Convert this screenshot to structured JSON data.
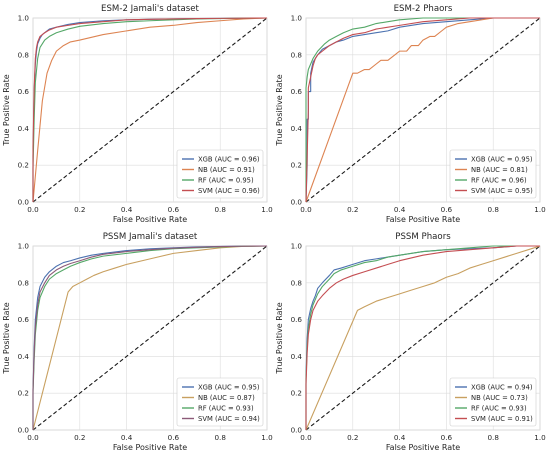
{
  "chart_data": [
    {
      "type": "line",
      "title": "ESM-2 Jamali's dataset",
      "xlabel": "False Positive Rate",
      "ylabel": "True Positive Rate",
      "xlim": [
        0,
        1
      ],
      "ylim": [
        0,
        1
      ],
      "ticks": [
        0.0,
        0.2,
        0.4,
        0.6,
        0.8,
        1.0
      ],
      "tick_labels": [
        "0.0",
        "0.2",
        "0.4",
        "0.6",
        "0.8",
        "1.0"
      ],
      "grid": true,
      "legend": "bottom-right",
      "diagonal": true,
      "series": [
        {
          "name": "XGB (AUC = 0.96)",
          "color": "#4c72b0",
          "x": [
            0,
            0,
            0.005,
            0.01,
            0.015,
            0.02,
            0.03,
            0.04,
            0.05,
            0.07,
            0.1,
            0.15,
            0.2,
            0.3,
            0.4,
            0.5,
            0.6,
            0.7,
            0.8,
            0.9,
            1.0
          ],
          "y": [
            0,
            0.25,
            0.6,
            0.75,
            0.82,
            0.86,
            0.89,
            0.91,
            0.92,
            0.94,
            0.95,
            0.965,
            0.975,
            0.985,
            0.99,
            0.993,
            0.995,
            0.997,
            0.998,
            0.999,
            1.0
          ]
        },
        {
          "name": "NB (AUC = 0.91)",
          "color": "#dd8452",
          "x": [
            0,
            0.02,
            0.04,
            0.06,
            0.08,
            0.1,
            0.13,
            0.16,
            0.2,
            0.3,
            0.4,
            0.5,
            0.6,
            0.7,
            0.8,
            0.9,
            1.0
          ],
          "y": [
            0,
            0.28,
            0.55,
            0.7,
            0.77,
            0.82,
            0.85,
            0.87,
            0.88,
            0.91,
            0.93,
            0.95,
            0.96,
            0.975,
            0.985,
            0.995,
            1.0
          ]
        },
        {
          "name": "RF (AUC = 0.95)",
          "color": "#55a868",
          "x": [
            0,
            0,
            0.005,
            0.01,
            0.02,
            0.03,
            0.05,
            0.07,
            0.1,
            0.15,
            0.2,
            0.3,
            0.4,
            0.5,
            0.6,
            0.7,
            0.8,
            0.9,
            1.0
          ],
          "y": [
            0,
            0.18,
            0.45,
            0.65,
            0.78,
            0.84,
            0.88,
            0.9,
            0.92,
            0.94,
            0.955,
            0.97,
            0.98,
            0.985,
            0.99,
            0.995,
            0.997,
            0.999,
            1.0
          ]
        },
        {
          "name": "SVM (AUC = 0.96)",
          "color": "#c44e52",
          "x": [
            0,
            0,
            0.005,
            0.01,
            0.015,
            0.02,
            0.03,
            0.05,
            0.07,
            0.1,
            0.15,
            0.2,
            0.3,
            0.4,
            0.5,
            0.6,
            0.7,
            0.8,
            0.9,
            1.0
          ],
          "y": [
            0,
            0.3,
            0.62,
            0.78,
            0.84,
            0.87,
            0.9,
            0.92,
            0.935,
            0.95,
            0.96,
            0.97,
            0.98,
            0.99,
            0.993,
            0.995,
            0.997,
            0.998,
            0.999,
            1.0
          ]
        }
      ]
    },
    {
      "type": "line",
      "title": "ESM-2 Phaors",
      "xlabel": "False Positive Rate",
      "ylabel": "True Positive Rate",
      "xlim": [
        0,
        1
      ],
      "ylim": [
        0,
        1
      ],
      "ticks": [
        0.0,
        0.2,
        0.4,
        0.6,
        0.8,
        1.0
      ],
      "tick_labels": [
        "0.0",
        "0.2",
        "0.4",
        "0.6",
        "0.8",
        "1.0"
      ],
      "grid": true,
      "legend": "bottom-right",
      "diagonal": true,
      "series": [
        {
          "name": "XGB (AUC = 0.95)",
          "color": "#4c72b0",
          "x": [
            0,
            0.005,
            0.005,
            0.01,
            0.01,
            0.02,
            0.02,
            0.03,
            0.05,
            0.07,
            0.1,
            0.13,
            0.16,
            0.2,
            0.25,
            0.3,
            0.35,
            0.4,
            0.5,
            0.6,
            0.7,
            0.8,
            1.0
          ],
          "y": [
            0,
            0.2,
            0.45,
            0.45,
            0.6,
            0.6,
            0.7,
            0.76,
            0.8,
            0.83,
            0.85,
            0.87,
            0.88,
            0.9,
            0.91,
            0.92,
            0.93,
            0.95,
            0.97,
            0.98,
            0.99,
            1.0,
            1.0
          ]
        },
        {
          "name": "NB (AUC = 0.81)",
          "color": "#dd8452",
          "x": [
            0,
            0.2,
            0.22,
            0.25,
            0.27,
            0.3,
            0.32,
            0.35,
            0.38,
            0.4,
            0.43,
            0.45,
            0.48,
            0.5,
            0.53,
            0.55,
            0.58,
            0.6,
            0.65,
            0.7,
            0.8,
            1.0
          ],
          "y": [
            0,
            0.7,
            0.7,
            0.72,
            0.72,
            0.75,
            0.77,
            0.77,
            0.8,
            0.82,
            0.82,
            0.85,
            0.85,
            0.88,
            0.9,
            0.9,
            0.93,
            0.95,
            0.97,
            0.98,
            1.0,
            1.0
          ]
        },
        {
          "name": "RF (AUC = 0.96)",
          "color": "#55a868",
          "x": [
            0,
            0,
            0.005,
            0.01,
            0.02,
            0.03,
            0.05,
            0.08,
            0.1,
            0.13,
            0.16,
            0.2,
            0.25,
            0.3,
            0.35,
            0.4,
            0.5,
            0.6,
            0.7,
            0.8,
            1.0
          ],
          "y": [
            0,
            0.62,
            0.68,
            0.72,
            0.75,
            0.78,
            0.82,
            0.86,
            0.88,
            0.9,
            0.92,
            0.94,
            0.95,
            0.97,
            0.98,
            0.99,
            1.0,
            1.0,
            1.0,
            1.0,
            1.0
          ]
        },
        {
          "name": "SVM (AUC = 0.95)",
          "color": "#c44e52",
          "x": [
            0,
            0.005,
            0.01,
            0.01,
            0.02,
            0.03,
            0.04,
            0.05,
            0.07,
            0.1,
            0.13,
            0.16,
            0.2,
            0.25,
            0.3,
            0.35,
            0.4,
            0.5,
            0.6,
            0.7,
            0.8,
            1.0
          ],
          "y": [
            0,
            0.25,
            0.5,
            0.62,
            0.68,
            0.74,
            0.78,
            0.8,
            0.82,
            0.85,
            0.87,
            0.89,
            0.91,
            0.92,
            0.94,
            0.95,
            0.96,
            0.98,
            0.99,
            1.0,
            1.0,
            1.0
          ]
        }
      ]
    },
    {
      "type": "line",
      "title": "PSSM Jamali's dataset",
      "xlabel": "False Positive Rate",
      "ylabel": "True Positive Rate",
      "xlim": [
        0,
        1
      ],
      "ylim": [
        0,
        1
      ],
      "ticks": [
        0.0,
        0.2,
        0.4,
        0.6,
        0.8,
        1.0
      ],
      "tick_labels": [
        "0.0",
        "0.2",
        "0.4",
        "0.6",
        "0.8",
        "1.0"
      ],
      "grid": true,
      "legend": "bottom-right",
      "diagonal": true,
      "series": [
        {
          "name": "XGB (AUC = 0.95)",
          "color": "#4c72b0",
          "x": [
            0,
            0,
            0.005,
            0.01,
            0.02,
            0.03,
            0.05,
            0.07,
            0.1,
            0.13,
            0.16,
            0.2,
            0.25,
            0.3,
            0.4,
            0.5,
            0.6,
            0.7,
            0.8,
            0.9,
            1.0
          ],
          "y": [
            0,
            0.22,
            0.45,
            0.6,
            0.72,
            0.78,
            0.83,
            0.86,
            0.89,
            0.91,
            0.92,
            0.935,
            0.95,
            0.96,
            0.975,
            0.985,
            0.99,
            0.995,
            0.998,
            0.999,
            1.0
          ]
        },
        {
          "name": "NB (AUC = 0.87)",
          "color": "#c8a060",
          "x": [
            0,
            0.15,
            0.17,
            0.2,
            0.23,
            0.26,
            0.3,
            0.35,
            0.4,
            0.5,
            0.6,
            0.7,
            0.8,
            0.9,
            1.0
          ],
          "y": [
            0,
            0.75,
            0.78,
            0.8,
            0.82,
            0.84,
            0.86,
            0.88,
            0.9,
            0.93,
            0.96,
            0.975,
            0.99,
            0.998,
            1.0
          ]
        },
        {
          "name": "RF (AUC = 0.93)",
          "color": "#55a868",
          "x": [
            0,
            0,
            0.005,
            0.01,
            0.02,
            0.03,
            0.05,
            0.07,
            0.1,
            0.13,
            0.16,
            0.2,
            0.25,
            0.3,
            0.4,
            0.5,
            0.6,
            0.7,
            0.8,
            0.9,
            1.0
          ],
          "y": [
            0,
            0.2,
            0.38,
            0.52,
            0.65,
            0.72,
            0.78,
            0.82,
            0.85,
            0.87,
            0.89,
            0.91,
            0.93,
            0.945,
            0.96,
            0.975,
            0.985,
            0.99,
            0.995,
            0.999,
            1.0
          ]
        },
        {
          "name": "SVM (AUC = 0.94)",
          "color": "#8c5a78",
          "x": [
            0,
            0,
            0.005,
            0.01,
            0.02,
            0.03,
            0.05,
            0.07,
            0.1,
            0.13,
            0.16,
            0.2,
            0.25,
            0.3,
            0.4,
            0.5,
            0.6,
            0.7,
            0.8,
            0.9,
            1.0
          ],
          "y": [
            0,
            0.22,
            0.42,
            0.56,
            0.68,
            0.75,
            0.8,
            0.84,
            0.87,
            0.89,
            0.905,
            0.92,
            0.94,
            0.955,
            0.97,
            0.98,
            0.988,
            0.993,
            0.997,
            0.999,
            1.0
          ]
        }
      ]
    },
    {
      "type": "line",
      "title": "PSSM Phaors",
      "xlabel": "False Positive Rate",
      "ylabel": "True Positive Rate",
      "xlim": [
        0,
        1
      ],
      "ylim": [
        0,
        1
      ],
      "ticks": [
        0.0,
        0.2,
        0.4,
        0.6,
        0.8,
        1.0
      ],
      "tick_labels": [
        "0.0",
        "0.2",
        "0.4",
        "0.6",
        "0.8",
        "1.0"
      ],
      "grid": true,
      "legend": "bottom-right",
      "diagonal": true,
      "series": [
        {
          "name": "XGB (AUC = 0.94)",
          "color": "#4c72b0",
          "x": [
            0,
            0,
            0.005,
            0.01,
            0.02,
            0.03,
            0.04,
            0.05,
            0.07,
            0.1,
            0.12,
            0.15,
            0.2,
            0.25,
            0.3,
            0.35,
            0.4,
            0.45,
            0.5,
            0.6,
            0.7,
            0.8,
            0.9,
            1.0
          ],
          "y": [
            0,
            0.3,
            0.5,
            0.6,
            0.66,
            0.7,
            0.73,
            0.77,
            0.8,
            0.84,
            0.87,
            0.88,
            0.9,
            0.92,
            0.93,
            0.94,
            0.95,
            0.96,
            0.97,
            0.98,
            0.985,
            0.99,
            1.0,
            1.0
          ]
        },
        {
          "name": "NB (AUC = 0.73)",
          "color": "#c8a060",
          "x": [
            0,
            0.22,
            0.25,
            0.3,
            0.35,
            0.4,
            0.45,
            0.5,
            0.55,
            0.6,
            0.65,
            0.7,
            0.75,
            0.8,
            0.85,
            0.9,
            0.95,
            1.0
          ],
          "y": [
            0,
            0.65,
            0.67,
            0.7,
            0.72,
            0.74,
            0.76,
            0.78,
            0.8,
            0.83,
            0.85,
            0.88,
            0.9,
            0.92,
            0.94,
            0.96,
            0.98,
            1.0
          ]
        },
        {
          "name": "RF (AUC = 0.93)",
          "color": "#55a868",
          "x": [
            0,
            0,
            0.005,
            0.01,
            0.02,
            0.03,
            0.05,
            0.07,
            0.1,
            0.12,
            0.15,
            0.2,
            0.25,
            0.3,
            0.35,
            0.4,
            0.5,
            0.6,
            0.7,
            0.8,
            0.9,
            1.0
          ],
          "y": [
            0,
            0.28,
            0.45,
            0.55,
            0.63,
            0.68,
            0.74,
            0.78,
            0.82,
            0.85,
            0.87,
            0.89,
            0.91,
            0.92,
            0.94,
            0.95,
            0.97,
            0.98,
            0.99,
            1.0,
            1.0,
            1.0
          ]
        },
        {
          "name": "SVM (AUC = 0.91)",
          "color": "#c44e52",
          "x": [
            0,
            0,
            0.005,
            0.01,
            0.02,
            0.03,
            0.05,
            0.07,
            0.1,
            0.13,
            0.16,
            0.2,
            0.25,
            0.3,
            0.35,
            0.4,
            0.5,
            0.6,
            0.7,
            0.8,
            0.9,
            1.0
          ],
          "y": [
            0,
            0.25,
            0.42,
            0.52,
            0.6,
            0.65,
            0.7,
            0.73,
            0.77,
            0.8,
            0.82,
            0.84,
            0.86,
            0.88,
            0.9,
            0.92,
            0.95,
            0.97,
            0.98,
            0.99,
            1.0,
            1.0
          ]
        }
      ]
    }
  ]
}
